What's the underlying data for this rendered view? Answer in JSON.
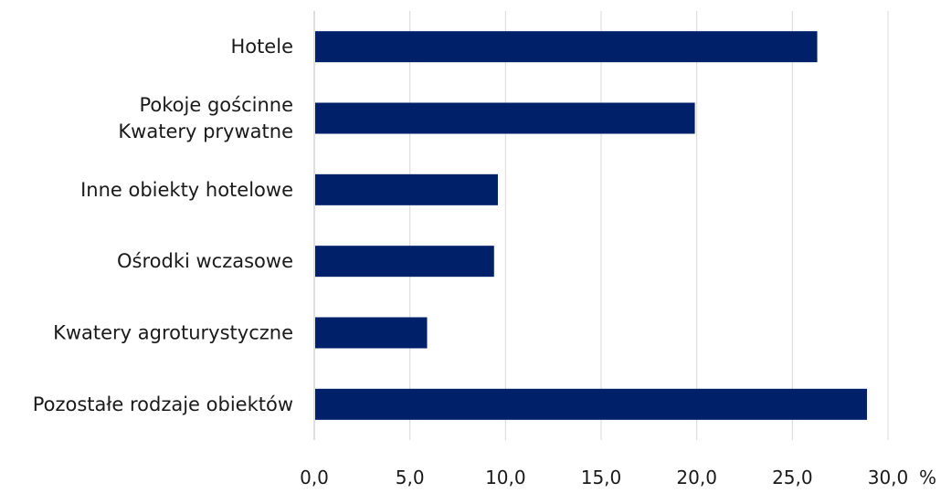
{
  "chart_data": {
    "type": "bar",
    "orientation": "horizontal",
    "categories": [
      [
        "Hotele"
      ],
      [
        "Pokoje gościnne",
        "Kwatery prywatne"
      ],
      [
        "Inne obiekty hotelowe"
      ],
      [
        "Ośrodki wczasowe"
      ],
      [
        "Kwatery agroturystyczne"
      ],
      [
        "Pozostałe rodzaje obiektów"
      ]
    ],
    "values": [
      26.3,
      19.9,
      9.6,
      9.4,
      5.9,
      28.9
    ],
    "xlim": [
      0,
      30
    ],
    "ticks": [
      0,
      5,
      10,
      15,
      20,
      25,
      30
    ],
    "tick_labels": [
      "0,0",
      "5,0",
      "10,0",
      "15,0",
      "20,0",
      "25,0",
      "30,0"
    ],
    "unit": "%",
    "bar_color": "#002169",
    "grid": true,
    "legend": "none"
  }
}
